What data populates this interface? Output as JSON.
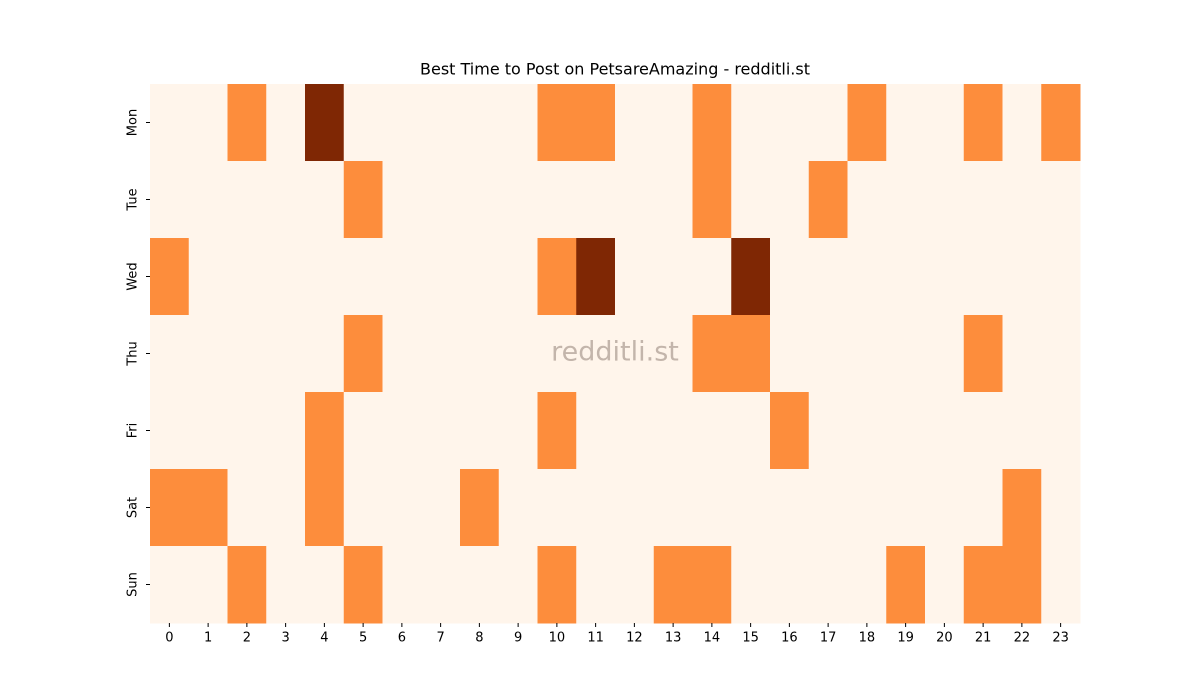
{
  "chart_data": {
    "type": "heatmap",
    "title": "Best Time to Post on PetsareAmazing - redditli.st",
    "watermark": "redditli.st",
    "x_categories": [
      "0",
      "1",
      "2",
      "3",
      "4",
      "5",
      "6",
      "7",
      "8",
      "9",
      "10",
      "11",
      "12",
      "13",
      "14",
      "15",
      "16",
      "17",
      "18",
      "19",
      "20",
      "21",
      "22",
      "23"
    ],
    "y_categories": [
      "Mon",
      "Tue",
      "Wed",
      "Thu",
      "Fri",
      "Sat",
      "Sun"
    ],
    "z": [
      [
        0,
        0,
        1,
        0,
        2,
        0,
        0,
        0,
        0,
        0,
        1,
        1,
        0,
        0,
        1,
        0,
        0,
        0,
        1,
        0,
        0,
        1,
        0,
        1
      ],
      [
        0,
        0,
        0,
        0,
        0,
        1,
        0,
        0,
        0,
        0,
        0,
        0,
        0,
        0,
        1,
        0,
        0,
        1,
        0,
        0,
        0,
        0,
        0,
        0
      ],
      [
        1,
        0,
        0,
        0,
        0,
        0,
        0,
        0,
        0,
        0,
        1,
        2,
        0,
        0,
        0,
        2,
        0,
        0,
        0,
        0,
        0,
        0,
        0,
        0
      ],
      [
        0,
        0,
        0,
        0,
        0,
        1,
        0,
        0,
        0,
        0,
        0,
        0,
        0,
        0,
        1,
        1,
        0,
        0,
        0,
        0,
        0,
        1,
        0,
        0
      ],
      [
        0,
        0,
        0,
        0,
        1,
        0,
        0,
        0,
        0,
        0,
        1,
        0,
        0,
        0,
        0,
        0,
        1,
        0,
        0,
        0,
        0,
        0,
        0,
        0
      ],
      [
        1,
        1,
        0,
        0,
        1,
        0,
        0,
        0,
        1,
        0,
        0,
        0,
        0,
        0,
        0,
        0,
        0,
        0,
        0,
        0,
        0,
        0,
        1,
        0
      ],
      [
        0,
        0,
        1,
        0,
        0,
        1,
        0,
        0,
        0,
        0,
        1,
        0,
        0,
        1,
        1,
        0,
        0,
        0,
        0,
        1,
        0,
        1,
        1,
        0
      ]
    ],
    "zlim": [
      0,
      2
    ],
    "colorscale": [
      "#fff5eb",
      "#fd8d3c",
      "#7f2704"
    ]
  }
}
